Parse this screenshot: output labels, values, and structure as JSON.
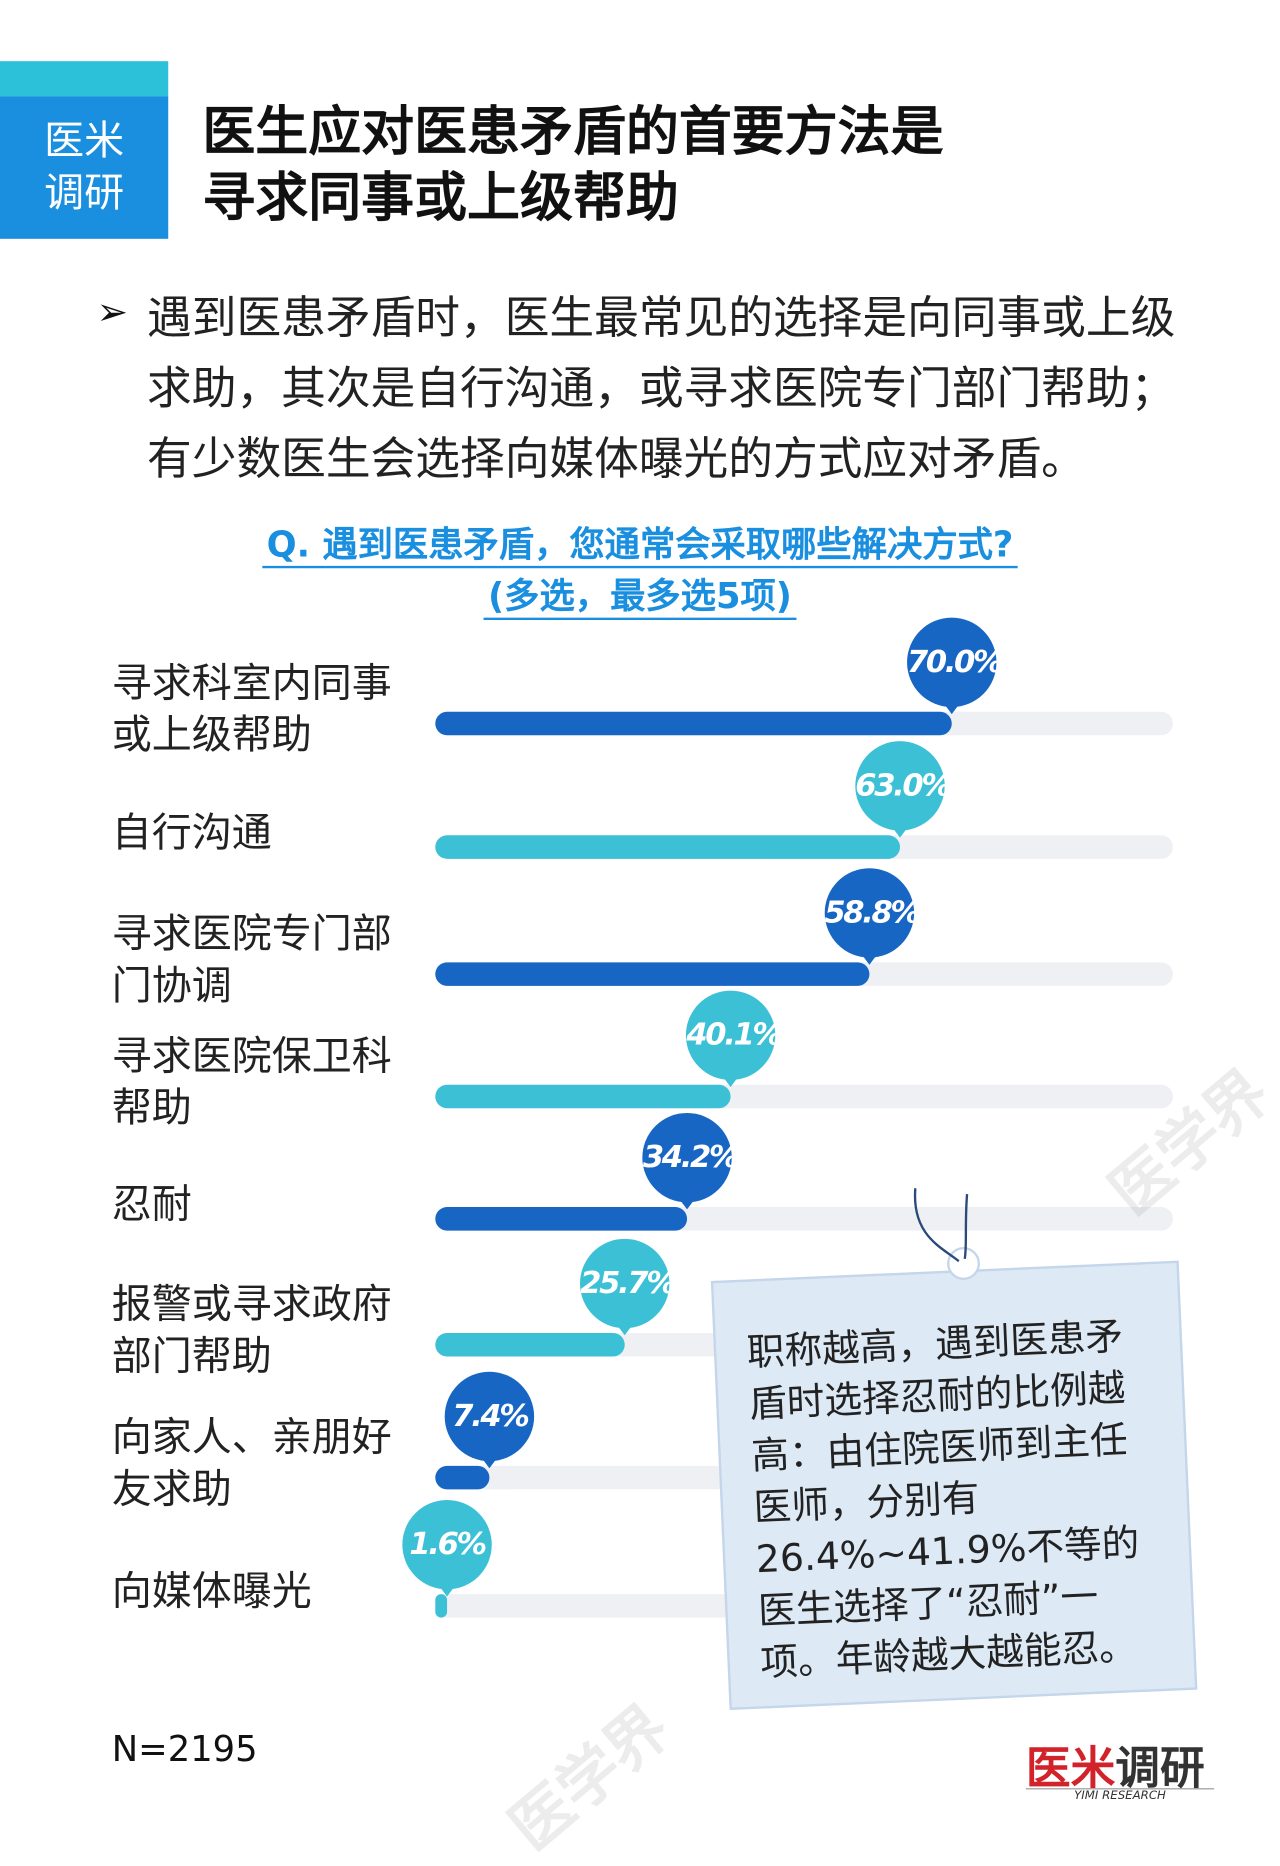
{
  "chart_data": {
    "type": "bar",
    "badge": [
      "医米",
      "调研"
    ],
    "title": [
      "医生应对医患矛盾的首要方法是",
      "寻求同事或上级帮助"
    ],
    "bullet": "遇到医患矛盾时，医生最常见的选择是向同事或上级求助，其次是自行沟通，或寻求医院专门部门帮助；有少数医生会选择向媒体曝光的方式应对矛盾。",
    "question": [
      "Q. 遇到医患矛盾，您通常会采取哪些解决方式?",
      "(多选，最多选5项)"
    ],
    "categories": [
      "寻求科室内同事或上级帮助",
      "自行沟通",
      "寻求医院专门部门协调",
      "寻求医院保卫科帮助",
      "忍耐",
      "报警或寻求政府部门帮助",
      "向家人、亲朋好友求助",
      "向媒体曝光"
    ],
    "values": [
      70.0,
      63.0,
      58.8,
      40.1,
      34.2,
      25.7,
      7.4,
      1.6
    ],
    "value_labels": [
      "70.0%",
      "63.0%",
      "58.8%",
      "40.1%",
      "34.2%",
      "25.7%",
      "7.4%",
      "1.6%"
    ],
    "colors": [
      "#1766c4",
      "#3cc0d6",
      "#1766c4",
      "#3cc0d6",
      "#1766c4",
      "#3cc0d6",
      "#1766c4",
      "#3cc0d6"
    ],
    "xlim": [
      0,
      100
    ],
    "annotation": "职称越高，遇到医患矛盾时选择忍耐的比例越高：由住院医师到主任医师，分别有26.4%~41.9%不等的医生选择了“忍耐”一项。年龄越大越能忍。",
    "note": "N=2195",
    "logo": [
      "医米",
      "调研"
    ],
    "logo_sub": "YIMI RESEARCH",
    "watermark": "医学界"
  }
}
